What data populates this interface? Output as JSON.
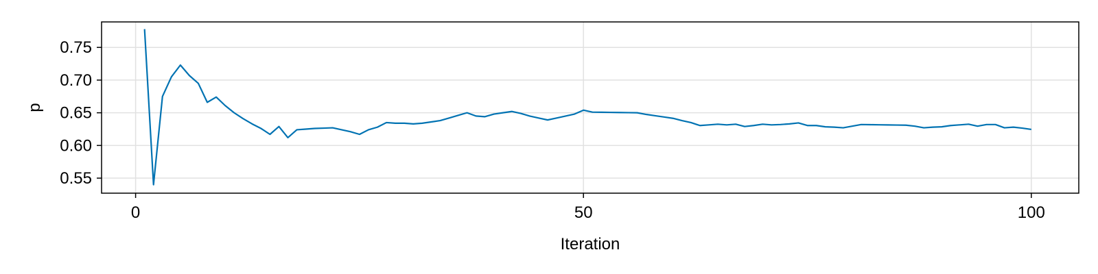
{
  "chart_data": {
    "type": "line",
    "xlabel": "Iteration",
    "ylabel": "p",
    "xlim": [
      -3.8,
      105.3
    ],
    "ylim": [
      0.527,
      0.789
    ],
    "x_ticks": [
      0,
      50,
      100
    ],
    "x_tick_labels": [
      "0",
      "50",
      "100"
    ],
    "y_ticks": [
      0.55,
      0.6,
      0.65,
      0.7,
      0.75
    ],
    "y_tick_labels": [
      "0.55",
      "0.60",
      "0.65",
      "0.70",
      "0.75"
    ],
    "grid": true,
    "series": [
      {
        "color": "#0072b2",
        "x": [
          1,
          2,
          3,
          4,
          5,
          6,
          7,
          8,
          9,
          10,
          11,
          12,
          13,
          14,
          15,
          16,
          17,
          18,
          19,
          20,
          21,
          22,
          23,
          24,
          25,
          26,
          27,
          28,
          29,
          30,
          31,
          32,
          33,
          34,
          35,
          36,
          37,
          38,
          39,
          40,
          41,
          42,
          43,
          44,
          45,
          46,
          47,
          48,
          49,
          50,
          51,
          52,
          53,
          54,
          55,
          56,
          57,
          58,
          59,
          60,
          61,
          62,
          63,
          64,
          65,
          66,
          67,
          68,
          69,
          70,
          71,
          72,
          73,
          74,
          75,
          76,
          77,
          78,
          79,
          80,
          81,
          82,
          83,
          84,
          85,
          86,
          87,
          88,
          89,
          90,
          91,
          92,
          93,
          94,
          95,
          96,
          97,
          98,
          99,
          100
        ],
        "y": [
          0.778,
          0.54,
          0.675,
          0.705,
          0.723,
          0.707,
          0.695,
          0.666,
          0.674,
          0.661,
          0.65,
          0.641,
          0.633,
          0.626,
          0.617,
          0.629,
          0.612,
          0.624,
          0.625,
          0.626,
          0.6265,
          0.627,
          0.624,
          0.621,
          0.617,
          0.624,
          0.628,
          0.635,
          0.634,
          0.634,
          0.633,
          0.634,
          0.636,
          0.638,
          0.642,
          0.646,
          0.65,
          0.645,
          0.644,
          0.648,
          0.65,
          0.652,
          0.649,
          0.645,
          0.642,
          0.639,
          0.642,
          0.645,
          0.648,
          0.654,
          0.651,
          0.6508,
          0.6506,
          0.6504,
          0.6502,
          0.65,
          0.6475,
          0.6455,
          0.6435,
          0.6415,
          0.638,
          0.635,
          0.6305,
          0.6315,
          0.6325,
          0.6315,
          0.6325,
          0.629,
          0.6305,
          0.6325,
          0.6315,
          0.632,
          0.633,
          0.6345,
          0.6305,
          0.6305,
          0.6285,
          0.628,
          0.627,
          0.6295,
          0.632,
          0.6318,
          0.6316,
          0.6314,
          0.6312,
          0.631,
          0.6295,
          0.627,
          0.628,
          0.6285,
          0.6305,
          0.6315,
          0.6325,
          0.6295,
          0.632,
          0.632,
          0.627,
          0.628,
          0.6265,
          0.6245
        ]
      }
    ]
  }
}
